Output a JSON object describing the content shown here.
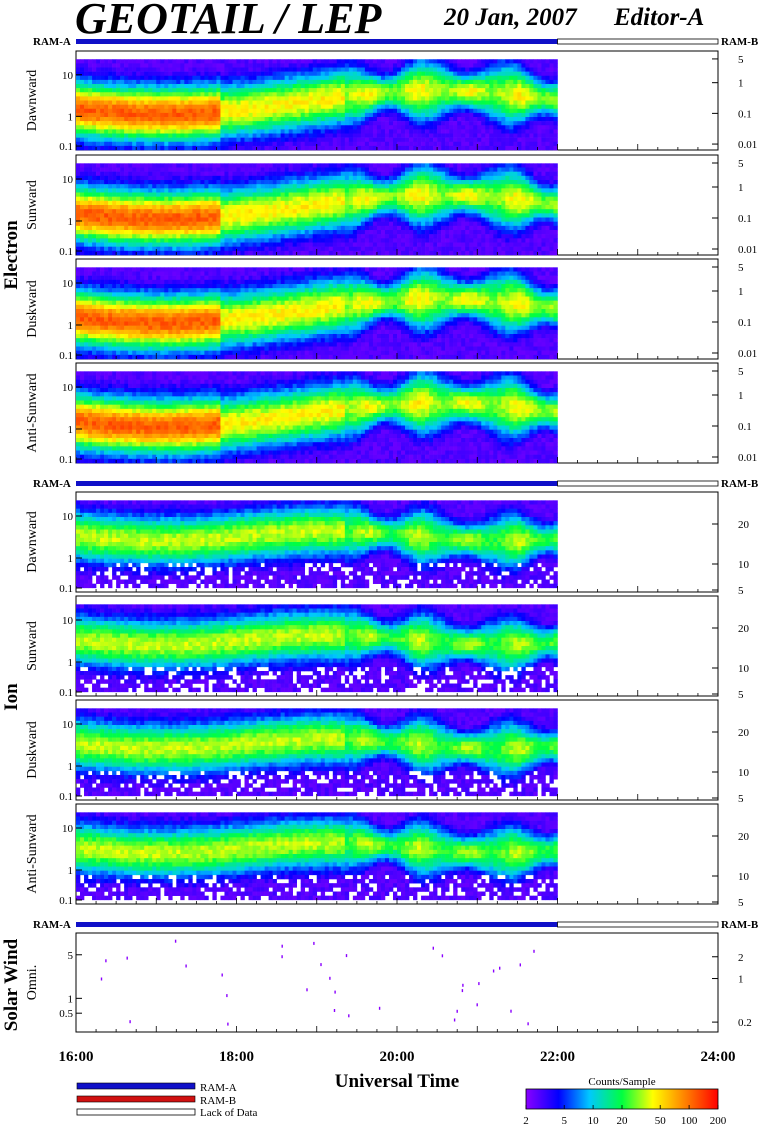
{
  "header": {
    "title": "GEOTAIL / LEP",
    "date": "20 Jan, 2007",
    "editor": "Editor-A"
  },
  "ram_labels": {
    "a": "RAM-A",
    "b": "RAM-B"
  },
  "groups": {
    "electron": "Electron",
    "ion": "Ion",
    "solar_wind": "Solar Wind"
  },
  "xaxis": {
    "label": "Universal Time",
    "ticks": [
      "16:00",
      "18:00",
      "20:00",
      "22:00",
      "24:00"
    ],
    "range_hours": [
      16,
      24
    ],
    "data_end_hour": 22.0
  },
  "legend": {
    "ram_a": "RAM-A",
    "ram_b": "RAM-B",
    "lack": "Lack of Data",
    "colors": {
      "ram_a": "#1010c8",
      "ram_b": "#d01010",
      "lack": "#ffffff"
    }
  },
  "colorbar": {
    "title": "Counts/Sample",
    "ticks": [
      "2",
      "5",
      "10",
      "20",
      "50",
      "100",
      "200"
    ],
    "scale": "log",
    "range": [
      2,
      200
    ]
  },
  "chart_data": [
    {
      "type": "heatmap",
      "group": "Electron",
      "ylabel": "Dawnward",
      "yticks_left": [
        "10",
        "1",
        "0.1"
      ],
      "yticks_right": [
        "5",
        "1",
        "0.1",
        "0.01"
      ],
      "scale": "log"
    },
    {
      "type": "heatmap",
      "group": "Electron",
      "ylabel": "Sunward",
      "yticks_left": [
        "10",
        "1",
        "0.1"
      ],
      "yticks_right": [
        "5",
        "1",
        "0.1",
        "0.01"
      ],
      "scale": "log"
    },
    {
      "type": "heatmap",
      "group": "Electron",
      "ylabel": "Duskward",
      "yticks_left": [
        "10",
        "1",
        "0.1"
      ],
      "yticks_right": [
        "5",
        "1",
        "0.1",
        "0.01"
      ],
      "scale": "log"
    },
    {
      "type": "heatmap",
      "group": "Electron",
      "ylabel": "Anti-Sunward",
      "yticks_left": [
        "10",
        "1",
        "0.1"
      ],
      "yticks_right": [
        "5",
        "1",
        "0.1",
        "0.01"
      ],
      "scale": "log"
    },
    {
      "type": "heatmap",
      "group": "Ion",
      "ylabel": "Dawnward",
      "yticks_left": [
        "10",
        "1",
        "0.1"
      ],
      "yticks_right": [
        "20",
        "10",
        "5"
      ],
      "scale": "log"
    },
    {
      "type": "heatmap",
      "group": "Ion",
      "ylabel": "Sunward",
      "yticks_left": [
        "10",
        "1",
        "0.1"
      ],
      "yticks_right": [
        "20",
        "10",
        "5"
      ],
      "scale": "log"
    },
    {
      "type": "heatmap",
      "group": "Ion",
      "ylabel": "Duskward",
      "yticks_left": [
        "10",
        "1",
        "0.1"
      ],
      "yticks_right": [
        "20",
        "10",
        "5"
      ],
      "scale": "log"
    },
    {
      "type": "heatmap",
      "group": "Ion",
      "ylabel": "Anti-Sunward",
      "yticks_left": [
        "10",
        "1",
        "0.1"
      ],
      "yticks_right": [
        "20",
        "10",
        "5"
      ],
      "scale": "log"
    },
    {
      "type": "heatmap",
      "group": "Solar Wind",
      "ylabel": "Omni.",
      "yticks_left": [
        "5",
        "1",
        "0.5"
      ],
      "yticks_right": [
        "2",
        "1",
        "0.2"
      ],
      "scale": "log"
    }
  ]
}
